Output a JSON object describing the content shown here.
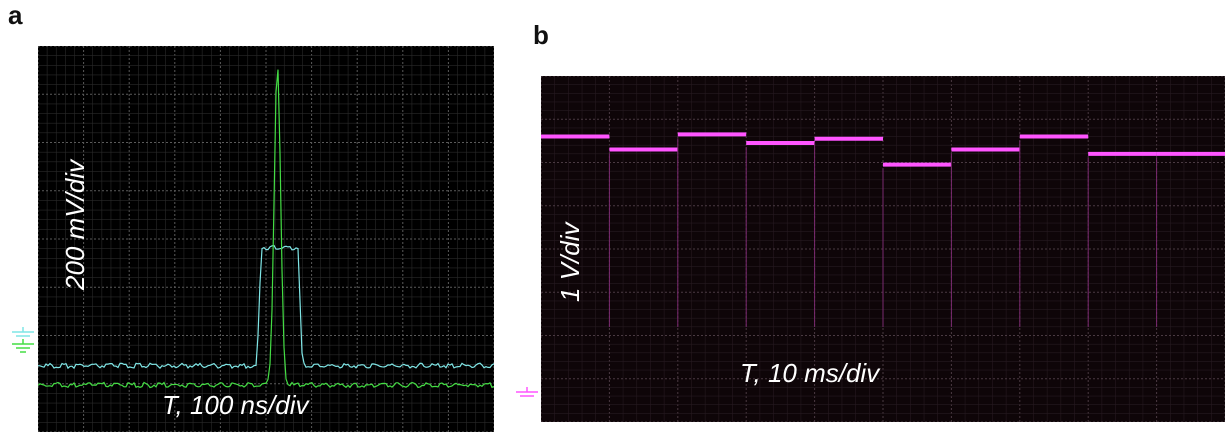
{
  "panels": [
    {
      "id": "a",
      "label": "a",
      "vertical_scale": "200 mV/div",
      "time_scale": "T, 100 ns/div",
      "channel_colors": {
        "ch1": "#7fe6e6",
        "ch2": "#44dd44"
      },
      "traces": {
        "cyan": {
          "baseline_div": 1.35,
          "pulse_start_div": 4.9,
          "pulse_end_div": 5.7,
          "pulse_level_div": 3.8
        },
        "green": {
          "baseline_div": 0.95,
          "peak_time_div": 5.25,
          "peak_level_div": 7.6
        }
      }
    },
    {
      "id": "b",
      "label": "b",
      "vertical_scale": "1 V/div",
      "time_scale": "T, 10 ms/div",
      "channel_colors": {
        "ch1": "#ff55ff"
      },
      "steps_div": [
        6.6,
        6.3,
        6.65,
        6.45,
        6.55,
        5.95,
        6.3,
        6.6,
        6.2,
        6.2
      ]
    }
  ]
}
